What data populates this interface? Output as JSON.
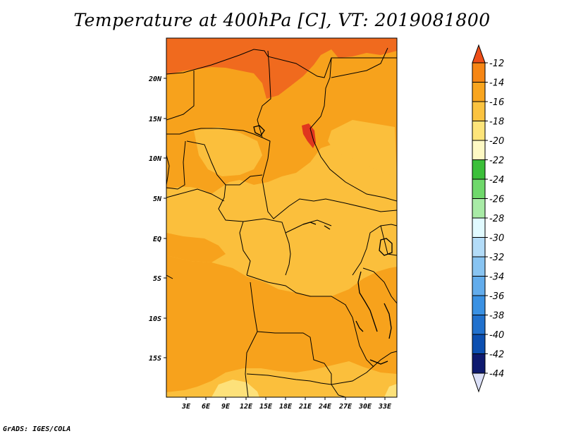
{
  "title": "Temperature at 400hPa [C], VT: 2019081800",
  "footer": "GrADS: IGES/COLA",
  "map": {
    "lon_labels": [
      "3E",
      "6E",
      "9E",
      "12E",
      "15E",
      "18E",
      "21E",
      "24E",
      "27E",
      "30E",
      "33E"
    ],
    "lat_labels": [
      "20N",
      "15N",
      "10N",
      "5N",
      "EQ",
      "5S",
      "10S",
      "15S"
    ],
    "fill_colors": {
      "minus_12_to_14": "#f06a1e",
      "minus_14_to_16": "#f7a21c",
      "minus_16_to_18": "#fbbf3c",
      "minus_18_to_20": "#fde17a",
      "red_spot": "#e0361e"
    }
  },
  "colorbar": {
    "labels": [
      "-12",
      "-14",
      "-16",
      "-18",
      "-20",
      "-22",
      "-24",
      "-26",
      "-28",
      "-30",
      "-32",
      "-34",
      "-36",
      "-38",
      "-40",
      "-42",
      "-44"
    ],
    "colors": [
      "#ee4e18",
      "#f68614",
      "#f9a51f",
      "#fbc340",
      "#fde47a",
      "#fef9c4",
      "#3bbf3a",
      "#6fd86b",
      "#a8eba6",
      "#e1faff",
      "#b3dcf8",
      "#88c4f2",
      "#62acec",
      "#3a91e3",
      "#2171cd",
      "#0c4fb0",
      "#0e1a6f",
      "#dbe0f8"
    ]
  }
}
